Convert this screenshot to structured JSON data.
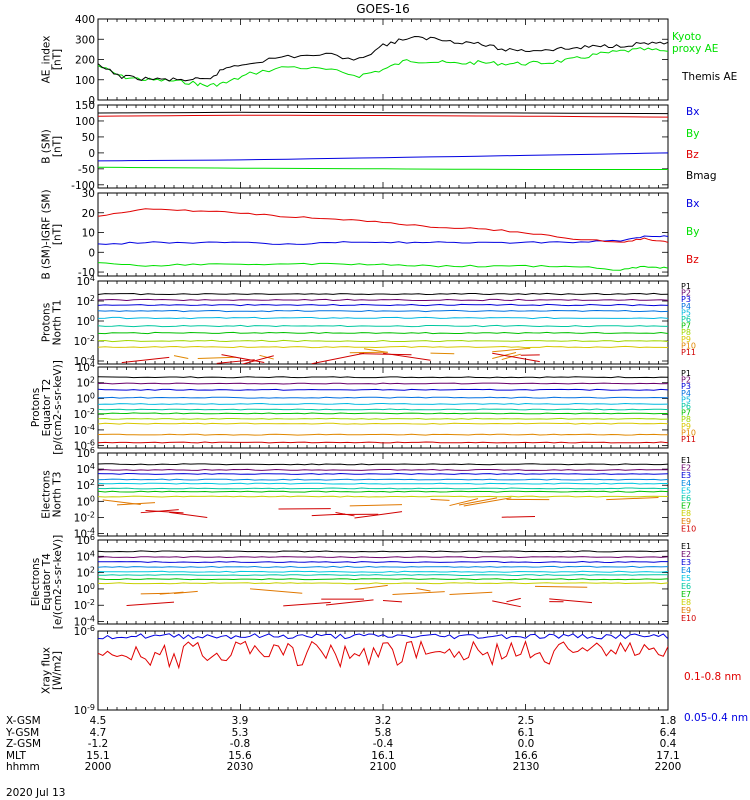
{
  "title": "GOES-16",
  "date": "2020 Jul 13",
  "colors": {
    "black": "#000000",
    "red": "#e00000",
    "green": "#00e000",
    "blue": "#0000e0",
    "p_colors": [
      "#000000",
      "#6a006a",
      "#0000d8",
      "#0070e0",
      "#00b8e0",
      "#00c8a0",
      "#00c000",
      "#a0d800",
      "#d8c800",
      "#e08800",
      "#d00000"
    ],
    "e_colors": [
      "#000000",
      "#6a006a",
      "#0000d8",
      "#0088e0",
      "#00c8e0",
      "#00c8a0",
      "#00c000",
      "#c8d000",
      "#e07800",
      "#d00000"
    ]
  },
  "ephemeris": {
    "labels": [
      "X-GSM",
      "Y-GSM",
      "Z-GSM",
      "MLT",
      "hhmm"
    ],
    "columns": [
      {
        "values": [
          "4.5",
          "4.7",
          "-1.2",
          "15.1",
          "2000"
        ]
      },
      {
        "values": [
          "3.9",
          "5.3",
          "-0.8",
          "15.6",
          "2030"
        ]
      },
      {
        "values": [
          "3.2",
          "5.8",
          "-0.4",
          "16.1",
          "2100"
        ]
      },
      {
        "values": [
          "2.5",
          "6.1",
          "0.0",
          "16.6",
          "2130"
        ]
      },
      {
        "values": [
          "1.8",
          "6.4",
          "0.4",
          "17.1",
          "2200"
        ]
      }
    ]
  },
  "chart_data": [
    {
      "type": "line",
      "ylabel": "AE_index\n[nT]",
      "ylim": [
        0,
        400
      ],
      "yticks": [
        "0",
        "100",
        "200",
        "300",
        "400"
      ],
      "series": [
        {
          "name": "Kyoto\nproxy AE",
          "color": "#00e000",
          "x": [
            2000,
            2005,
            2010,
            2015,
            2020,
            2023,
            2027,
            2032,
            2040,
            2048,
            2055,
            2100,
            2105,
            2110,
            2115,
            2120,
            2125,
            2130,
            2135,
            2140,
            2145,
            2150,
            2155,
            2200
          ],
          "values": [
            170,
            115,
            100,
            95,
            85,
            70,
            85,
            130,
            165,
            150,
            120,
            150,
            195,
            190,
            180,
            185,
            180,
            180,
            185,
            200,
            225,
            240,
            250,
            240
          ]
        },
        {
          "name": "Themis AE",
          "color": "#000000",
          "x": [
            2000,
            2005,
            2010,
            2015,
            2020,
            2023,
            2027,
            2032,
            2040,
            2048,
            2055,
            2100,
            2105,
            2110,
            2115,
            2120,
            2125,
            2130,
            2135,
            2140,
            2145,
            2150,
            2155,
            2200
          ],
          "values": [
            170,
            115,
            105,
            100,
            100,
            100,
            160,
            185,
            215,
            225,
            200,
            270,
            305,
            305,
            290,
            280,
            250,
            245,
            250,
            255,
            265,
            270,
            280,
            285
          ]
        }
      ]
    },
    {
      "type": "line",
      "ylabel": "B (SM)\n[nT]",
      "ylim": [
        -110,
        150
      ],
      "yticks": [
        "-100",
        "-50",
        "0",
        "50",
        "100",
        "150"
      ],
      "series": [
        {
          "name": "Bx",
          "color": "#0000e0",
          "x": [
            2000,
            2030,
            2100,
            2130,
            2200
          ],
          "values": [
            -25,
            -22,
            -15,
            -8,
            0
          ]
        },
        {
          "name": "By",
          "color": "#00e000",
          "x": [
            2000,
            2030,
            2100,
            2130,
            2200
          ],
          "values": [
            -45,
            -48,
            -50,
            -52,
            -52
          ]
        },
        {
          "name": "Bz",
          "color": "#e00000",
          "x": [
            2000,
            2030,
            2100,
            2130,
            2200
          ],
          "values": [
            115,
            118,
            117,
            115,
            112
          ]
        },
        {
          "name": "Bmag",
          "color": "#000000",
          "x": [
            2000,
            2030,
            2100,
            2130,
            2200
          ],
          "values": [
            125,
            127,
            126,
            125,
            123
          ]
        }
      ]
    },
    {
      "type": "line",
      "ylabel": "B (SM)-IGRF (SM)\n[nT]",
      "ylim": [
        -12,
        30
      ],
      "yticks": [
        "-10",
        "0",
        "10",
        "20",
        "30"
      ],
      "series": [
        {
          "name": "Bx",
          "color": "#0000e0",
          "x": [
            2000,
            2010,
            2020,
            2030,
            2040,
            2050,
            2100,
            2110,
            2120,
            2130,
            2140,
            2150,
            2155,
            2200
          ],
          "values": [
            4,
            5,
            5,
            5,
            4,
            5,
            5,
            5,
            5,
            5,
            5,
            6,
            8,
            8
          ]
        },
        {
          "name": "By",
          "color": "#00e000",
          "x": [
            2000,
            2010,
            2020,
            2030,
            2040,
            2050,
            2100,
            2110,
            2120,
            2130,
            2140,
            2150,
            2155,
            2200
          ],
          "values": [
            -5,
            -7,
            -6,
            -6,
            -6,
            -6,
            -6,
            -7,
            -7,
            -7,
            -7,
            -9,
            -7,
            -8
          ]
        },
        {
          "name": "Bz",
          "color": "#e00000",
          "x": [
            2000,
            2010,
            2020,
            2030,
            2040,
            2050,
            2100,
            2110,
            2120,
            2130,
            2140,
            2150,
            2155,
            2200
          ],
          "values": [
            18,
            22,
            21,
            20,
            18,
            17,
            15,
            13,
            12,
            10,
            7,
            5,
            7,
            5
          ]
        }
      ]
    },
    {
      "type": "line",
      "log": true,
      "ylabel": "Protons\nNorth T1",
      "ylim": [
        -4.3,
        4
      ],
      "yticks": [
        "10-4",
        "10-2",
        "100",
        "102",
        "104"
      ],
      "series": [
        {
          "name": "P1",
          "color": "#000000",
          "values": [
            2.7
          ]
        },
        {
          "name": "P2",
          "color": "#6a006a",
          "values": [
            2.1
          ]
        },
        {
          "name": "P3",
          "color": "#0000d8",
          "values": [
            1.6
          ]
        },
        {
          "name": "P4",
          "color": "#0070e0",
          "values": [
            1.0
          ]
        },
        {
          "name": "P5",
          "color": "#00b8e0",
          "values": [
            0.3
          ]
        },
        {
          "name": "P6",
          "color": "#00c8a0",
          "values": [
            -0.5
          ]
        },
        {
          "name": "P7",
          "color": "#00c000",
          "values": [
            -1.2
          ]
        },
        {
          "name": "P8",
          "color": "#a0d800",
          "values": [
            -2.0
          ]
        },
        {
          "name": "P9",
          "color": "#d8c800",
          "values": [
            -2.6
          ]
        },
        {
          "name": "P10",
          "color": "#e08800",
          "values": [
            -3.3
          ]
        },
        {
          "name": "P11",
          "color": "#d00000",
          "values": [
            -3.8
          ]
        }
      ]
    },
    {
      "type": "line",
      "log": true,
      "ylabel": "Protons\nEquator T2\n[p/(cm²-s-sr-keV)]",
      "ylim": [
        -6.3,
        4
      ],
      "yticks": [
        "10-6",
        "10-4",
        "10-2",
        "100",
        "102",
        "104"
      ],
      "series": [
        {
          "name": "P1",
          "color": "#000000",
          "values": [
            2.7
          ]
        },
        {
          "name": "P2",
          "color": "#6a006a",
          "values": [
            1.9
          ]
        },
        {
          "name": "P3",
          "color": "#0000d8",
          "values": [
            1.1
          ]
        },
        {
          "name": "P4",
          "color": "#0070e0",
          "values": [
            0.1
          ]
        },
        {
          "name": "P5",
          "color": "#00b8e0",
          "values": [
            -0.7
          ]
        },
        {
          "name": "P6",
          "color": "#00c8a0",
          "values": [
            -1.4
          ]
        },
        {
          "name": "P7",
          "color": "#00c000",
          "values": [
            -1.9
          ]
        },
        {
          "name": "P8",
          "color": "#a0d800",
          "values": [
            -2.6
          ]
        },
        {
          "name": "P9",
          "color": "#d8c800",
          "values": [
            -3.2
          ]
        },
        {
          "name": "P10",
          "color": "#e08800",
          "values": [
            -4.6
          ]
        },
        {
          "name": "P11",
          "color": "#d00000",
          "values": [
            -5.6
          ]
        }
      ]
    },
    {
      "type": "line",
      "log": true,
      "ylabel": "Electrons\nNorth T3",
      "ylim": [
        -4.3,
        6
      ],
      "yticks": [
        "10-4",
        "10-2",
        "100",
        "102",
        "104",
        "106"
      ],
      "series": [
        {
          "name": "E1",
          "color": "#000000",
          "values": [
            4.6
          ]
        },
        {
          "name": "E2",
          "color": "#6a006a",
          "values": [
            3.9
          ]
        },
        {
          "name": "E3",
          "color": "#0000d8",
          "values": [
            3.4
          ]
        },
        {
          "name": "E4",
          "color": "#0088e0",
          "values": [
            2.7
          ]
        },
        {
          "name": "E5",
          "color": "#00c8e0",
          "values": [
            2.2
          ]
        },
        {
          "name": "E6",
          "color": "#00c8a0",
          "values": [
            1.6
          ]
        },
        {
          "name": "E7",
          "color": "#00c000",
          "values": [
            1.2
          ]
        },
        {
          "name": "E8",
          "color": "#c8d000",
          "values": [
            0.6
          ]
        },
        {
          "name": "E9",
          "color": "#e07800",
          "values": [
            0.0
          ]
        },
        {
          "name": "E10",
          "color": "#d00000",
          "values": [
            -1.5
          ]
        }
      ]
    },
    {
      "type": "line",
      "log": true,
      "ylabel": "Electrons\nEquator T4\n[e/(cm²-s-sr-keV)]",
      "ylim": [
        -4.3,
        6
      ],
      "yticks": [
        "10-4",
        "10-2",
        "100",
        "102",
        "104",
        "106"
      ],
      "series": [
        {
          "name": "E1",
          "color": "#000000",
          "values": [
            4.6
          ]
        },
        {
          "name": "E2",
          "color": "#6a006a",
          "values": [
            3.9
          ]
        },
        {
          "name": "E3",
          "color": "#0000d8",
          "values": [
            3.3
          ]
        },
        {
          "name": "E4",
          "color": "#0088e0",
          "values": [
            2.7
          ]
        },
        {
          "name": "E5",
          "color": "#00c8e0",
          "values": [
            2.1
          ]
        },
        {
          "name": "E6",
          "color": "#00c8a0",
          "values": [
            1.7
          ]
        },
        {
          "name": "E7",
          "color": "#00c000",
          "values": [
            1.2
          ]
        },
        {
          "name": "E8",
          "color": "#c8d000",
          "values": [
            0.7
          ]
        },
        {
          "name": "E9",
          "color": "#e07800",
          "values": [
            -0.1
          ]
        },
        {
          "name": "E10",
          "color": "#d00000",
          "values": [
            -1.7
          ]
        }
      ]
    },
    {
      "type": "line",
      "log": true,
      "ylabel": "Xray flux\n[W/m²]",
      "ylim": [
        -9,
        -6
      ],
      "yticks": [
        "10-9",
        "10-6"
      ],
      "series": [
        {
          "name": "0.1-0.8 nm",
          "color": "#e00000",
          "values": [
            -6.75
          ]
        },
        {
          "name": "0.05-0.4 nm",
          "color": "#0000e0",
          "values": [
            -6.2
          ]
        }
      ]
    }
  ]
}
